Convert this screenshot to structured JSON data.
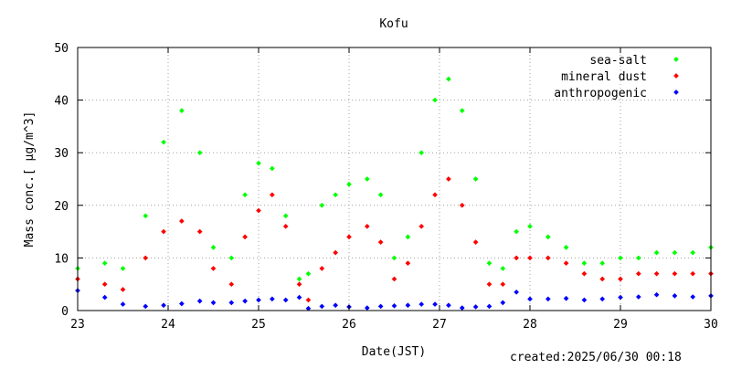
{
  "chart_data": {
    "type": "scatter",
    "title": "Kofu",
    "xlabel": "Date(JST)",
    "ylabel": "Mass conc.[ μg/m^3]",
    "x_unit": "day of month (June 2025)",
    "xlim": [
      23,
      30
    ],
    "ylim": [
      0,
      50
    ],
    "x_ticks": [
      23,
      24,
      25,
      26,
      27,
      28,
      29,
      30
    ],
    "x_tick_labels": [
      "23",
      "24",
      "25",
      "26",
      "27",
      "28",
      "29",
      "30"
    ],
    "y_ticks": [
      0,
      10,
      20,
      30,
      40,
      50
    ],
    "y_tick_labels": [
      "0",
      "10",
      "20",
      "30",
      "40",
      "50"
    ],
    "grid": true,
    "legend_position": "top-right",
    "series": [
      {
        "name": "sea-salt",
        "color": "#00ff00",
        "x": [
          23.0,
          23.3,
          23.5,
          23.75,
          23.95,
          24.15,
          24.35,
          24.5,
          24.7,
          24.85,
          25.0,
          25.15,
          25.3,
          25.45,
          25.55,
          25.7,
          25.85,
          26.0,
          26.2,
          26.35,
          26.5,
          26.65,
          26.8,
          26.95,
          27.1,
          27.25,
          27.4,
          27.55,
          27.7,
          27.85,
          28.0,
          28.2,
          28.4,
          28.6,
          28.8,
          29.0,
          29.2,
          29.4,
          29.6,
          29.8,
          30.0
        ],
        "values": [
          8,
          9,
          8,
          18,
          32,
          38,
          30,
          12,
          10,
          22,
          28,
          27,
          18,
          6,
          7,
          20,
          22,
          24,
          25,
          22,
          10,
          14,
          30,
          40,
          44,
          38,
          25,
          9,
          8,
          15,
          16,
          14,
          12,
          9,
          9,
          10,
          10,
          11,
          11,
          11,
          12
        ]
      },
      {
        "name": "mineral dust",
        "color": "#ff0000",
        "x": [
          23.0,
          23.3,
          23.5,
          23.75,
          23.95,
          24.15,
          24.35,
          24.5,
          24.7,
          24.85,
          25.0,
          25.15,
          25.3,
          25.45,
          25.55,
          25.7,
          25.85,
          26.0,
          26.2,
          26.35,
          26.5,
          26.65,
          26.8,
          26.95,
          27.1,
          27.25,
          27.4,
          27.55,
          27.7,
          27.85,
          28.0,
          28.2,
          28.4,
          28.6,
          28.8,
          29.0,
          29.2,
          29.4,
          29.6,
          29.8,
          30.0
        ],
        "values": [
          6,
          5,
          4,
          10,
          15,
          17,
          15,
          8,
          5,
          14,
          19,
          22,
          16,
          5,
          2,
          8,
          11,
          14,
          16,
          13,
          6,
          9,
          16,
          22,
          25,
          20,
          13,
          5,
          5,
          10,
          10,
          10,
          9,
          7,
          6,
          6,
          7,
          7,
          7,
          7,
          7
        ]
      },
      {
        "name": "anthropogenic",
        "color": "#0000ff",
        "x": [
          23.0,
          23.3,
          23.5,
          23.75,
          23.95,
          24.15,
          24.35,
          24.5,
          24.7,
          24.85,
          25.0,
          25.15,
          25.3,
          25.45,
          25.55,
          25.7,
          25.85,
          26.0,
          26.2,
          26.35,
          26.5,
          26.65,
          26.8,
          26.95,
          27.1,
          27.25,
          27.4,
          27.55,
          27.7,
          27.85,
          28.0,
          28.2,
          28.4,
          28.6,
          28.8,
          29.0,
          29.2,
          29.4,
          29.6,
          29.8,
          30.0
        ],
        "values": [
          3.8,
          2.5,
          1.2,
          0.8,
          1.0,
          1.3,
          1.8,
          1.5,
          1.5,
          1.8,
          2.0,
          2.2,
          2.0,
          2.5,
          0.4,
          0.8,
          1.0,
          0.7,
          0.5,
          0.8,
          0.9,
          1.0,
          1.2,
          1.2,
          1.0,
          0.5,
          0.7,
          0.8,
          1.5,
          3.5,
          2.2,
          2.2,
          2.3,
          2.0,
          2.2,
          2.5,
          2.6,
          3.0,
          2.8,
          2.6,
          2.8
        ]
      }
    ],
    "annotation": "created:2025/06/30 00:18"
  }
}
